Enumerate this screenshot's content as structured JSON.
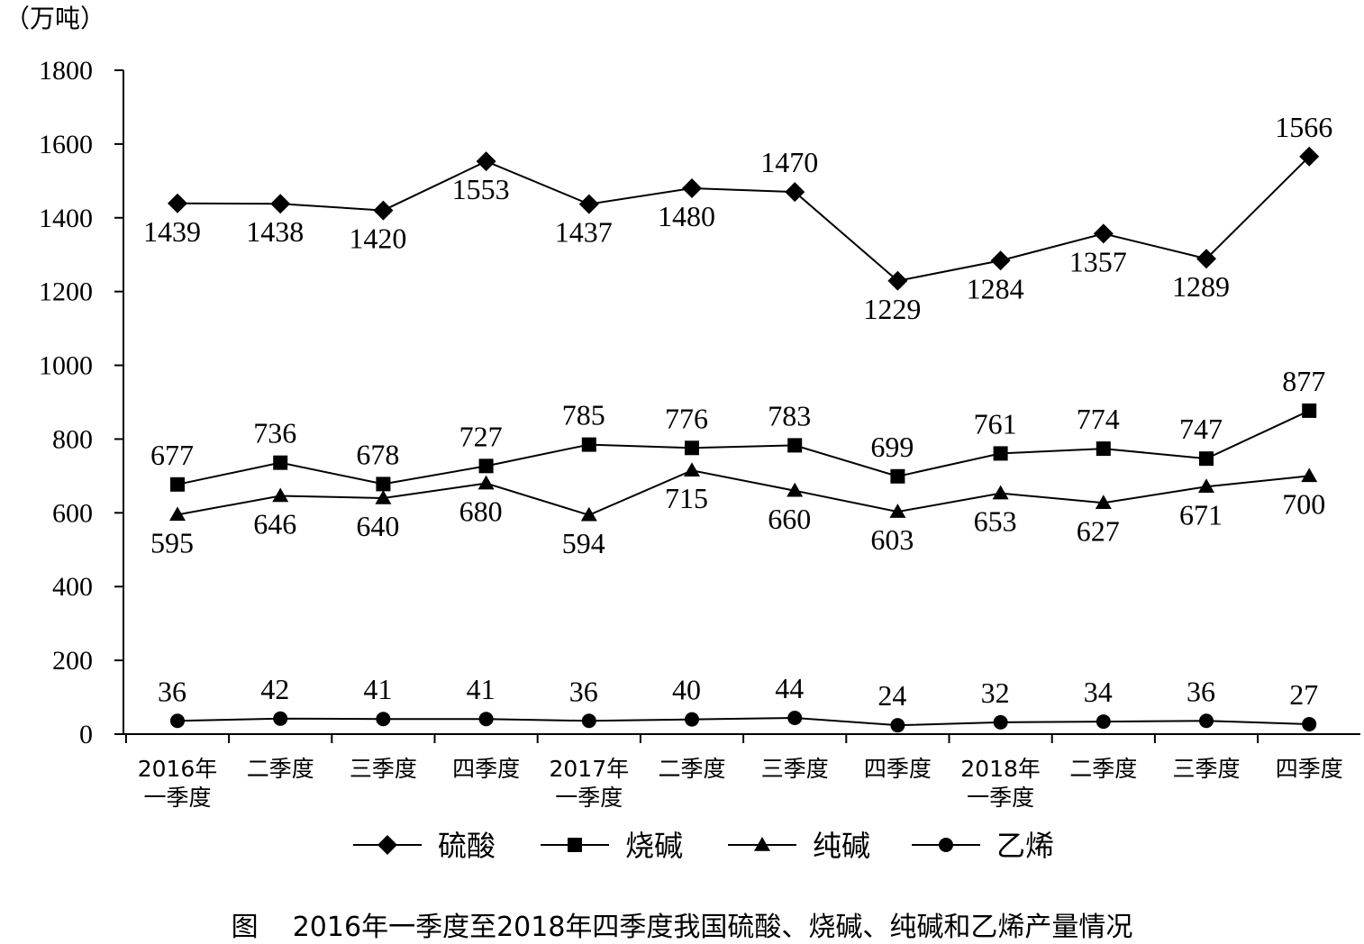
{
  "chart_data": {
    "type": "line",
    "unit_label": "（万吨）",
    "caption": "图    2016年一季度至2018年四季度我国硫酸、烧碱、纯碱和乙烯产量情况",
    "categories": [
      [
        "2016年",
        "一季度"
      ],
      [
        "二季度"
      ],
      [
        "三季度"
      ],
      [
        "四季度"
      ],
      [
        "2017年",
        "一季度"
      ],
      [
        "二季度"
      ],
      [
        "三季度"
      ],
      [
        "四季度"
      ],
      [
        "2018年",
        "一季度"
      ],
      [
        "二季度"
      ],
      [
        "三季度"
      ],
      [
        "四季度"
      ]
    ],
    "ylim": [
      0,
      1800
    ],
    "yticks": [
      0,
      200,
      400,
      600,
      800,
      1000,
      1200,
      1400,
      1600,
      1800
    ],
    "series": [
      {
        "name": "硫酸",
        "marker": "diamond",
        "values": [
          1439,
          1438,
          1420,
          1553,
          1437,
          1480,
          1470,
          1229,
          1284,
          1357,
          1289,
          1566
        ],
        "label_pos": [
          "below",
          "below",
          "below",
          "below",
          "below",
          "below",
          "above",
          "below",
          "below",
          "below",
          "below",
          "above"
        ]
      },
      {
        "name": "烧碱",
        "marker": "square",
        "values": [
          677,
          736,
          678,
          727,
          785,
          776,
          783,
          699,
          761,
          774,
          747,
          877
        ],
        "label_pos": [
          "above",
          "above",
          "above",
          "above",
          "above",
          "above",
          "above",
          "above",
          "above",
          "above",
          "above",
          "above"
        ]
      },
      {
        "name": "纯碱",
        "marker": "triangle",
        "values": [
          595,
          646,
          640,
          680,
          594,
          715,
          660,
          603,
          653,
          627,
          671,
          700
        ],
        "label_pos": [
          "below",
          "below",
          "below",
          "below",
          "below",
          "below",
          "below",
          "below",
          "below",
          "below",
          "below",
          "below"
        ]
      },
      {
        "name": "乙烯",
        "marker": "circle",
        "values": [
          36,
          42,
          41,
          41,
          36,
          40,
          44,
          24,
          32,
          34,
          36,
          27
        ],
        "label_pos": [
          "above",
          "above",
          "above",
          "above",
          "above",
          "above",
          "above",
          "above",
          "above",
          "above",
          "above",
          "above"
        ]
      }
    ],
    "legend_position": "bottom",
    "grid": false
  }
}
